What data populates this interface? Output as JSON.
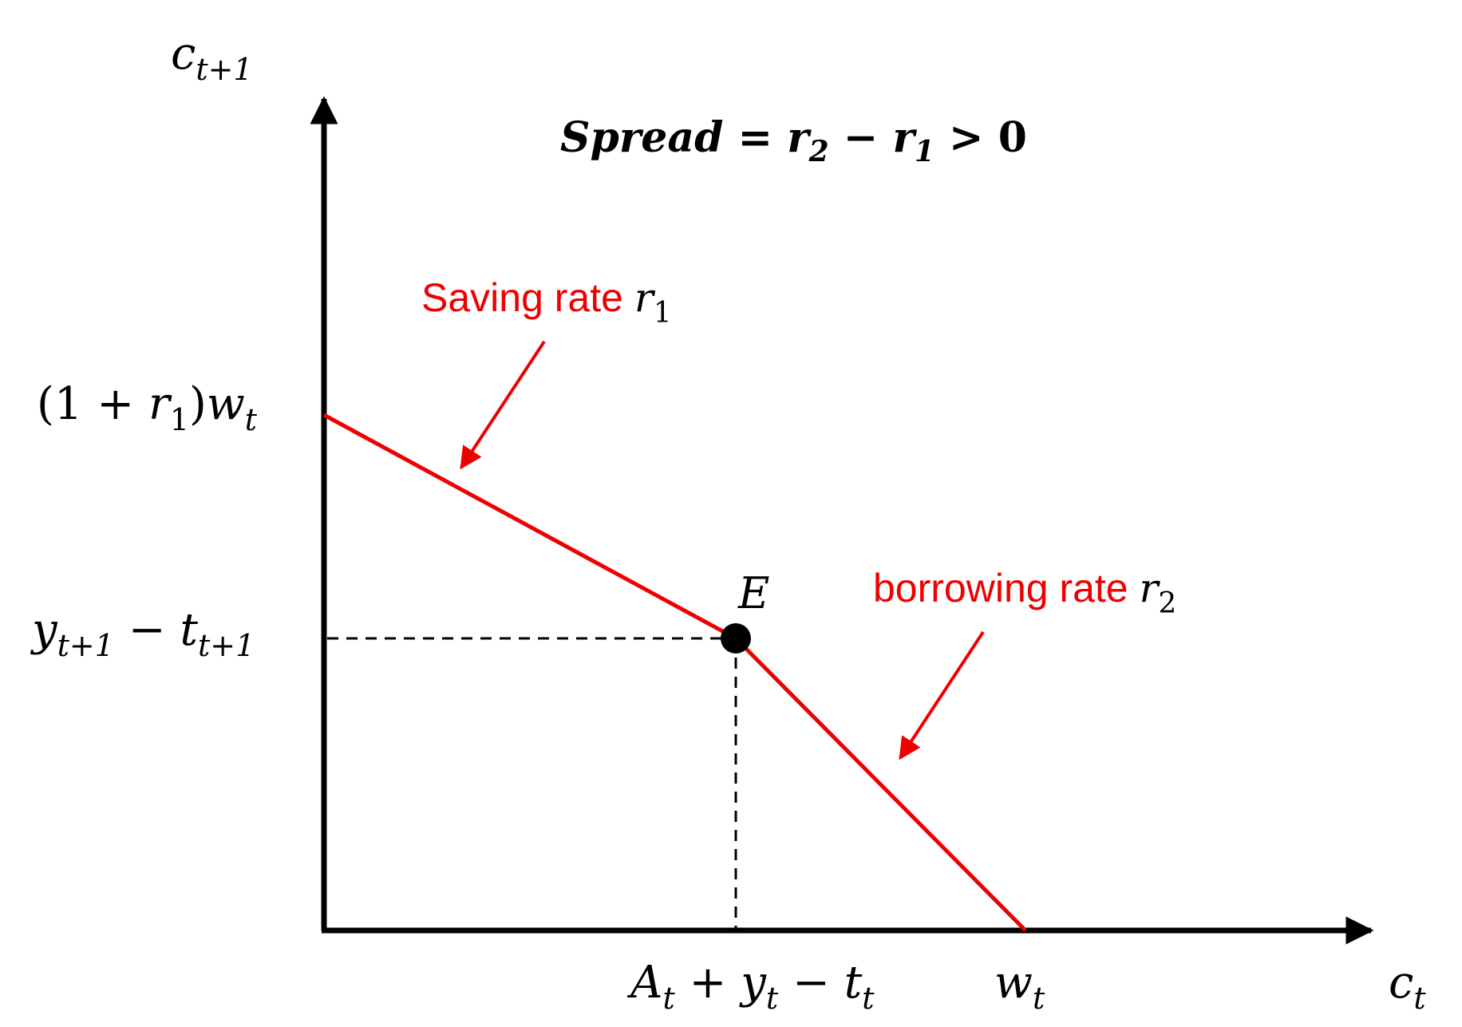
{
  "axes": {
    "y_label": {
      "base": "c",
      "sub": "t+1"
    },
    "x_label": {
      "base": "c",
      "sub": "t"
    }
  },
  "title": {
    "word": "Spread",
    "eq": " = ",
    "r2_base": "r",
    "r2_sub": "2",
    "minus": " − ",
    "r1_base": "r",
    "r1_sub": "1",
    "tail": " > 0"
  },
  "y_ticks": {
    "top": {
      "open": "(1 + ",
      "r_base": "r",
      "r_sub": "1",
      "close": ")",
      "w_base": "w",
      "w_sub": "t"
    },
    "mid": {
      "y_base": "y",
      "y_sub": "t+1",
      "minus": " − ",
      "t_base": "t",
      "t_sub": "t+1"
    }
  },
  "x_ticks": {
    "endowment": {
      "a_base": "A",
      "a_sub": "t",
      "plus": " + ",
      "y_base": "y",
      "y_sub": "t",
      "minus": " − ",
      "t_base": "t",
      "t_sub": "t"
    },
    "wealth": {
      "base": "w",
      "sub": "t"
    }
  },
  "point": {
    "label": "E"
  },
  "annotations": {
    "saving": {
      "text": "Saving rate ",
      "var_base": "r",
      "var_sub": "1"
    },
    "borrowing": {
      "text": "borrowing rate ",
      "var_base": "r",
      "var_sub": "2"
    }
  },
  "colors": {
    "budget_line": "#ee0000",
    "annotation": "#ee0000",
    "axes": "#000000",
    "guides": "#000000"
  }
}
